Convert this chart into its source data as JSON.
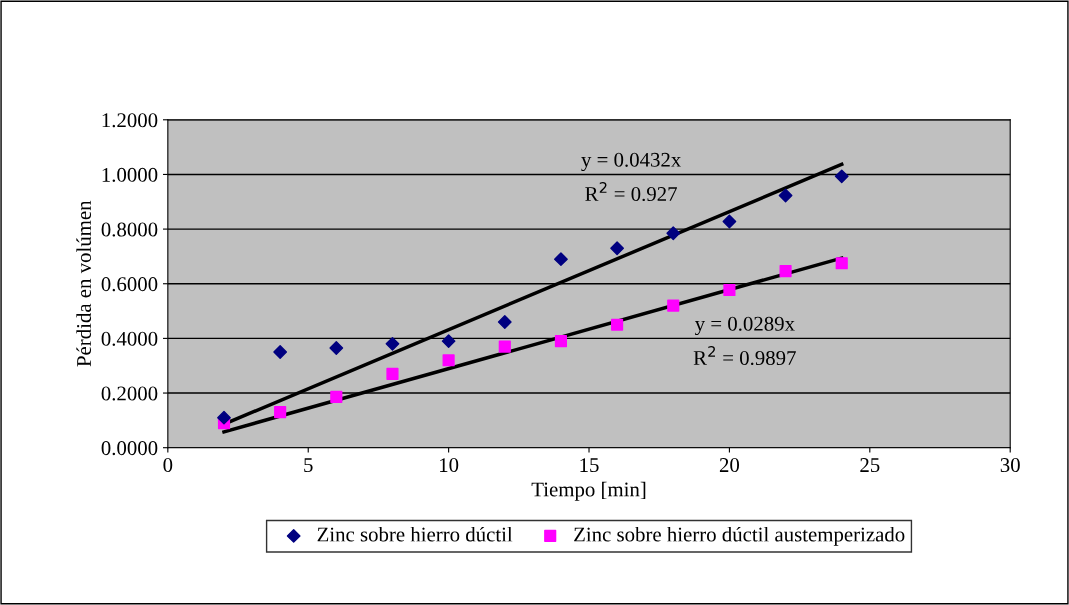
{
  "chart_data": {
    "type": "scatter",
    "xlabel": "Tiempo [min]",
    "ylabel": "Pérdida en volúmen",
    "series": [
      {
        "name": "Zinc sobre hierro dúctil",
        "color": "#000080",
        "marker": "diamond",
        "x": [
          2,
          4,
          6,
          8,
          10,
          12,
          14,
          16,
          18,
          20,
          22,
          24
        ],
        "values": [
          0.11,
          0.35,
          0.365,
          0.38,
          0.39,
          0.46,
          0.69,
          0.73,
          0.785,
          0.828,
          0.923,
          0.993
        ]
      },
      {
        "name": "Zinc sobre hierro dúctil austemperizado",
        "color": "#ff00ff",
        "marker": "square",
        "x": [
          2,
          4,
          6,
          8,
          10,
          12,
          14,
          16,
          18,
          20,
          22,
          24
        ],
        "values": [
          0.09,
          0.13,
          0.186,
          0.27,
          0.32,
          0.37,
          0.39,
          0.45,
          0.52,
          0.577,
          0.646,
          0.675
        ]
      },
      {
        "type": "line",
        "color": "#000000",
        "marker": "none",
        "x": [
          2,
          24
        ],
        "values": [
          0.086,
          1.037
        ]
      },
      {
        "type": "line",
        "color": "#000000",
        "marker": "none",
        "x": [
          2,
          24
        ],
        "values": [
          0.058,
          0.694
        ]
      }
    ],
    "annotations": [
      "y = 0.0432x\nR$^{2}$ = 0.927",
      "y = 0.0289x\nR$^{2}$ = 0.9897"
    ],
    "xlim": [
      0,
      30
    ],
    "xticks": [
      0,
      5,
      10,
      15,
      20,
      25,
      30
    ],
    "ylim": [
      0,
      1.2
    ],
    "yticks": [
      {
        "value": 0,
        "label": "0.0000"
      },
      {
        "value": 0.2,
        "label": "0.2000"
      },
      {
        "value": 0.4,
        "label": "0.4000"
      },
      {
        "value": 0.6,
        "label": "0.6000"
      },
      {
        "value": 0.8,
        "label": "0.8000"
      },
      {
        "value": 1.0,
        "label": "1.0000"
      },
      {
        "value": 1.2,
        "label": "1.2000"
      }
    ],
    "grid": "y",
    "legend": "bottom"
  }
}
